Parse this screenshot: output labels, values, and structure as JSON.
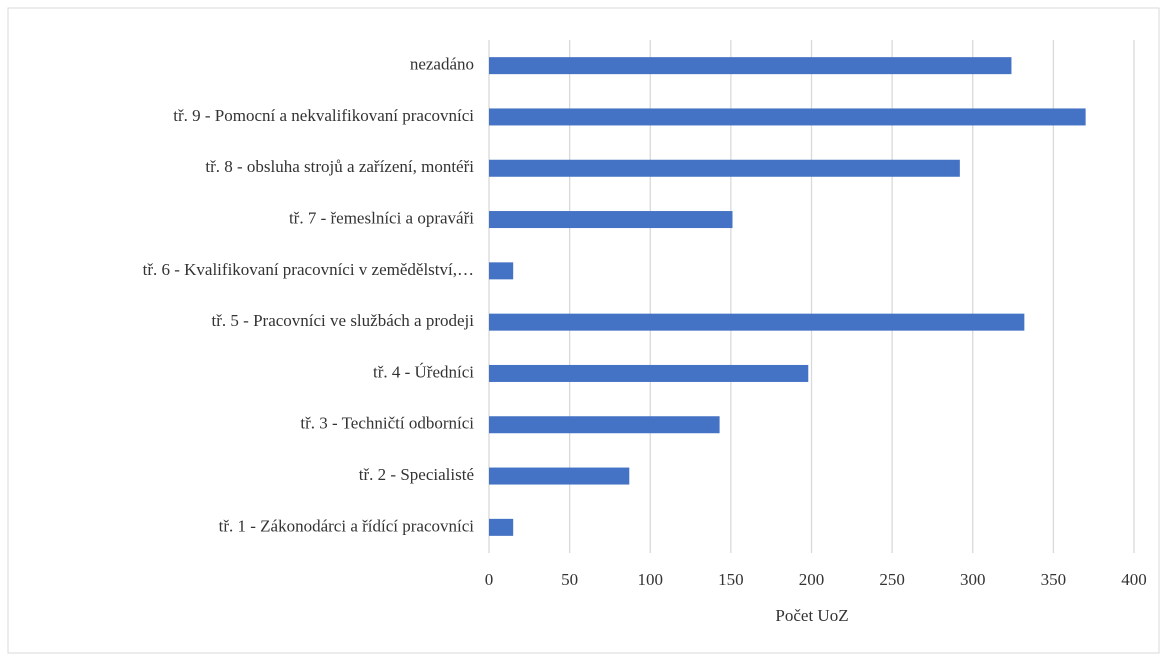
{
  "chart_data": {
    "type": "barh",
    "categories": [
      "nezadáno",
      "tř. 9 - Pomocní a nekvalifikovaní pracovníci",
      "tř. 8 - obsluha strojů a zařízení, montéři",
      "tř. 7 - řemeslníci a opraváři",
      "tř. 6 - Kvalifikovaní pracovníci v zemědělství,…",
      "tř. 5 - Pracovníci ve službách a prodeji",
      "tř. 4 - Úředníci",
      "tř. 3 - Techničtí odborníci",
      "tř. 2 - Specialisté",
      "tř. 1 - Zákonodárci a řídící pracovníci"
    ],
    "values": [
      324,
      370,
      292,
      151,
      15,
      332,
      198,
      143,
      87,
      15
    ],
    "color": "#4472c4",
    "xlabel": "Počet UoZ",
    "xlim": [
      0,
      400
    ],
    "xticks": [
      0,
      50,
      100,
      150,
      200,
      250,
      300,
      350,
      400
    ],
    "grid": true
  }
}
